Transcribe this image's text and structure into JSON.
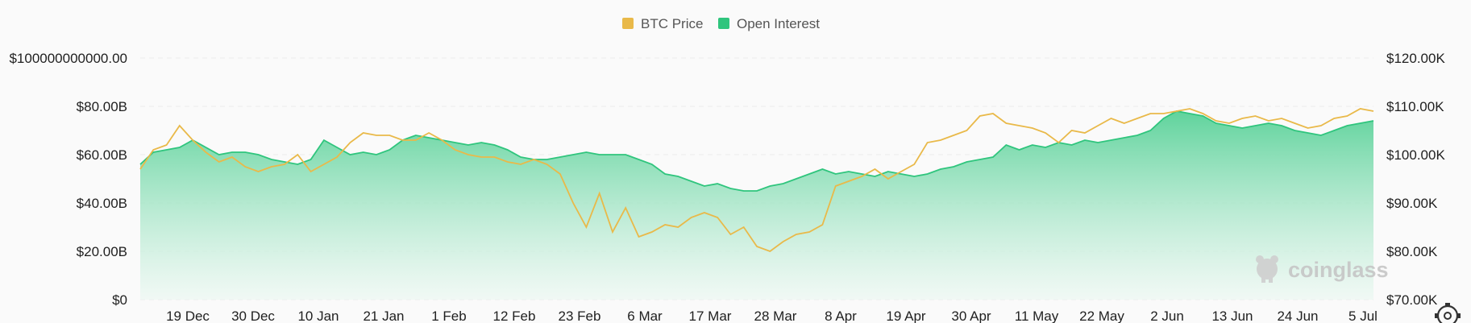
{
  "legend": {
    "btc_label": "BTC Price",
    "oi_label": "Open Interest"
  },
  "watermark": {
    "text": "coinglass",
    "icon": "coinglass-logo-icon"
  },
  "colors": {
    "btc": "#e9b949",
    "oi_line": "#2fc57d",
    "oi_fill_top": "#5fd39c",
    "oi_fill_bottom": "#eaf8f1"
  },
  "settings_icon": "gear-icon",
  "chart_data": {
    "type": "area",
    "left_axis": {
      "ticks": [
        0,
        20000000000,
        40000000000,
        60000000000,
        80000000000,
        100000000000
      ],
      "tick_labels": [
        "$0",
        "$20.00B",
        "$40.00B",
        "$60.00B",
        "$80.00B",
        "$100000000000.00"
      ],
      "range": [
        0,
        100000000000
      ]
    },
    "right_axis": {
      "ticks": [
        70000,
        80000,
        90000,
        100000,
        110000,
        120000
      ],
      "tick_labels": [
        "$70.00K",
        "$80.00K",
        "$90.00K",
        "$100.00K",
        "$110.00K",
        "$120.00K"
      ],
      "range": [
        70000,
        120000
      ]
    },
    "x_axis": {
      "tick_labels": [
        "19 Dec",
        "30 Dec",
        "10 Jan",
        "21 Jan",
        "1 Feb",
        "12 Feb",
        "23 Feb",
        "6 Mar",
        "17 Mar",
        "28 Mar",
        "8 Apr",
        "19 Apr",
        "30 Apr",
        "11 May",
        "22 May",
        "2 Jun",
        "13 Jun",
        "24 Jun",
        "5 Jul"
      ]
    },
    "grid": true,
    "legend_position": "top-center",
    "series": [
      {
        "name": "Open Interest",
        "axis": "left",
        "values": [
          56,
          61,
          62,
          63,
          66,
          63,
          60,
          61,
          61,
          60,
          58,
          57,
          56,
          58,
          66,
          63,
          60,
          61,
          60,
          62,
          66,
          68,
          67,
          66,
          65,
          64,
          65,
          64,
          62,
          59,
          58,
          58,
          59,
          60,
          61,
          60,
          60,
          60,
          58,
          56,
          52,
          51,
          49,
          47,
          48,
          46,
          45,
          45,
          47,
          48,
          50,
          52,
          54,
          52,
          53,
          52,
          51,
          53,
          52,
          51,
          52,
          54,
          55,
          57,
          58,
          59,
          64,
          62,
          64,
          63,
          65,
          64,
          66,
          65,
          66,
          67,
          68,
          70,
          75,
          78,
          77,
          76,
          73,
          72,
          71,
          72,
          73,
          72,
          70,
          69,
          68,
          70,
          72,
          73,
          74
        ]
      },
      {
        "name": "BTC Price",
        "axis": "right",
        "values": [
          97000,
          101000,
          102000,
          106000,
          103000,
          100500,
          98500,
          99500,
          97500,
          96500,
          97500,
          98000,
          100000,
          96500,
          98000,
          99500,
          102500,
          104500,
          104000,
          104000,
          103000,
          103000,
          104500,
          103000,
          101000,
          100000,
          99500,
          99500,
          98500,
          98000,
          99000,
          98000,
          96000,
          90000,
          85000,
          92000,
          84000,
          89000,
          83000,
          84000,
          85500,
          85000,
          87000,
          88000,
          87000,
          83500,
          85000,
          81000,
          80000,
          82000,
          83500,
          84000,
          85500,
          93500,
          94500,
          95500,
          97000,
          95000,
          96500,
          98000,
          102500,
          103000,
          104000,
          105000,
          108000,
          108500,
          106500,
          106000,
          105500,
          104500,
          102500,
          105000,
          104500,
          106000,
          107500,
          106500,
          107500,
          108500,
          108500,
          109000,
          109500,
          108500,
          107000,
          106500,
          107500,
          108000,
          107000,
          107500,
          106500,
          105500,
          106000,
          107500,
          108000,
          109500,
          109000
        ]
      }
    ]
  }
}
